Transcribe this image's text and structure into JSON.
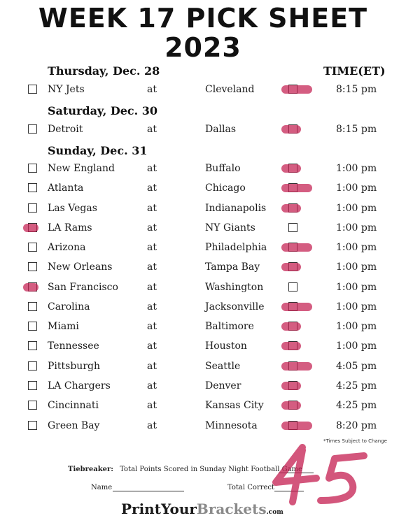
{
  "title": {
    "line1": "WEEK 17 PICK SHEET",
    "line2": "2023"
  },
  "time_header": "TIME(ET)",
  "days": [
    {
      "label": "Thursday, Dec. 28"
    },
    {
      "label": "Saturday, Dec. 30"
    },
    {
      "label": "Sunday, Dec. 31"
    }
  ],
  "at_label": "at",
  "games": [
    {
      "away": "NY Jets",
      "home": "Cleveland",
      "time": "8:15 pm",
      "pick": "home"
    },
    {
      "away": "Detroit",
      "home": "Dallas",
      "time": "8:15 pm",
      "pick": "home"
    },
    {
      "away": "New England",
      "home": "Buffalo",
      "time": "1:00 pm",
      "pick": "home"
    },
    {
      "away": "Atlanta",
      "home": "Chicago",
      "time": "1:00 pm",
      "pick": "home"
    },
    {
      "away": "Las Vegas",
      "home": "Indianapolis",
      "time": "1:00 pm",
      "pick": "home"
    },
    {
      "away": "LA Rams",
      "home": "NY Giants",
      "time": "1:00 pm",
      "pick": "away"
    },
    {
      "away": "Arizona",
      "home": "Philadelphia",
      "time": "1:00 pm",
      "pick": "home"
    },
    {
      "away": "New Orleans",
      "home": "Tampa Bay",
      "time": "1:00 pm",
      "pick": "home"
    },
    {
      "away": "San Francisco",
      "home": "Washington",
      "time": "1:00 pm",
      "pick": "away"
    },
    {
      "away": "Carolina",
      "home": "Jacksonville",
      "time": "1:00 pm",
      "pick": "home"
    },
    {
      "away": "Miami",
      "home": "Baltimore",
      "time": "1:00 pm",
      "pick": "home"
    },
    {
      "away": "Tennessee",
      "home": "Houston",
      "time": "1:00 pm",
      "pick": "home"
    },
    {
      "away": "Pittsburgh",
      "home": "Seattle",
      "time": "4:05 pm",
      "pick": "home"
    },
    {
      "away": "LA Chargers",
      "home": "Denver",
      "time": "4:25 pm",
      "pick": "home"
    },
    {
      "away": "Cincinnati",
      "home": "Kansas City",
      "time": "4:25 pm",
      "pick": "home"
    },
    {
      "away": "Green Bay",
      "home": "Minnesota",
      "time": "8:20 pm",
      "pick": "home"
    }
  ],
  "note": "*Times Subject to Change",
  "tiebreaker": {
    "label": "Tiebreaker:",
    "text": "Total Points Scored in Sunday Night Football Game",
    "value": "45"
  },
  "name_label": "Name",
  "total_correct_label": "Total Correct",
  "logo": {
    "part1": "PrintYour",
    "part2": "Brackets",
    "suffix": ".com"
  },
  "colors": {
    "highlighter": "#c41e50"
  }
}
